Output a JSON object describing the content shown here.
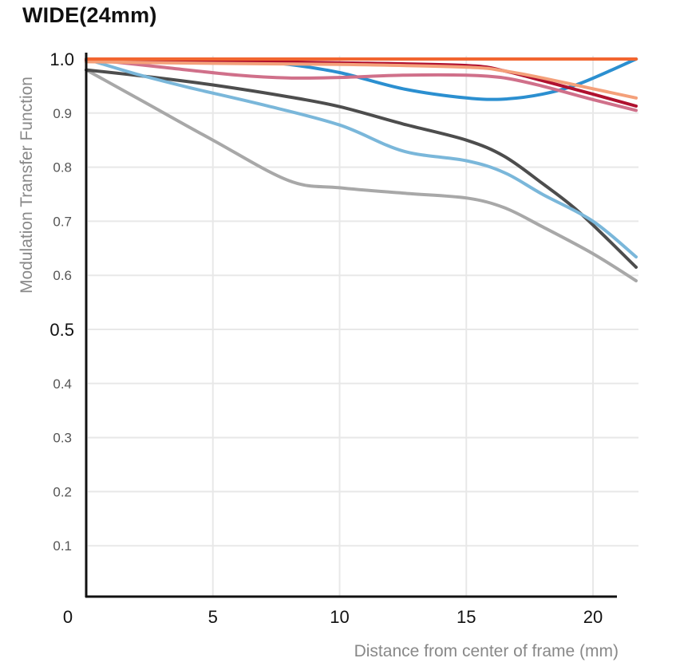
{
  "chart_data": {
    "type": "line",
    "title": "WIDE(24mm)",
    "xlabel": "Distance from center of frame (mm)",
    "ylabel": "Modulation Transfer Function",
    "xlim": [
      0,
      21.7
    ],
    "ylim": [
      0,
      1.0
    ],
    "grid": true,
    "legend": "none",
    "xticks": [
      {
        "value": 0,
        "label": "0"
      },
      {
        "value": 5,
        "label": "5"
      },
      {
        "value": 10,
        "label": "10"
      },
      {
        "value": 15,
        "label": "15"
      },
      {
        "value": 20,
        "label": "20"
      }
    ],
    "yticks": [
      {
        "value": 1.0,
        "label": "1.0",
        "major": true
      },
      {
        "value": 0.9,
        "label": "0.9",
        "major": false
      },
      {
        "value": 0.8,
        "label": "0.8",
        "major": false
      },
      {
        "value": 0.7,
        "label": "0.7",
        "major": false
      },
      {
        "value": 0.6,
        "label": "0.6",
        "major": false
      },
      {
        "value": 0.5,
        "label": "0.5",
        "major": true
      },
      {
        "value": 0.4,
        "label": "0.4",
        "major": false
      },
      {
        "value": 0.3,
        "label": "0.3",
        "major": false
      },
      {
        "value": 0.2,
        "label": "0.2",
        "major": false
      },
      {
        "value": 0.1,
        "label": "0.1",
        "major": false
      }
    ],
    "series": [
      {
        "name": "series-gray",
        "color": "#a8a8a8",
        "x": [
          0,
          2.5,
          5,
          8,
          10,
          12.5,
          15,
          16.5,
          18,
          20,
          21.7
        ],
        "y": [
          0.98,
          0.915,
          0.85,
          0.775,
          0.762,
          0.752,
          0.743,
          0.725,
          0.69,
          0.64,
          0.59
        ]
      },
      {
        "name": "series-dark-gray",
        "color": "#4d4d4d",
        "x": [
          0,
          2.5,
          5,
          8,
          10,
          12.5,
          15,
          16.5,
          18,
          19.5,
          21.7
        ],
        "y": [
          0.98,
          0.967,
          0.952,
          0.93,
          0.912,
          0.88,
          0.85,
          0.82,
          0.77,
          0.715,
          0.615
        ]
      },
      {
        "name": "series-light-blue",
        "color": "#7ab7da",
        "x": [
          0,
          2,
          4,
          7,
          10,
          12.5,
          15,
          16.5,
          18,
          20,
          21.7
        ],
        "y": [
          1.0,
          0.972,
          0.948,
          0.915,
          0.878,
          0.83,
          0.812,
          0.79,
          0.75,
          0.7,
          0.634
        ]
      },
      {
        "name": "series-blue",
        "color": "#2b8fd0",
        "x": [
          0,
          3,
          6,
          8,
          10,
          12.5,
          15,
          16.5,
          18,
          19.5,
          21.7
        ],
        "y": [
          1.0,
          1.0,
          0.999,
          0.99,
          0.975,
          0.945,
          0.928,
          0.926,
          0.935,
          0.955,
          1.0
        ]
      },
      {
        "name": "series-pink",
        "color": "#d0708a",
        "x": [
          0,
          3,
          6,
          8,
          10,
          12.5,
          15,
          16.5,
          18,
          20,
          21.7
        ],
        "y": [
          1.0,
          0.985,
          0.97,
          0.965,
          0.966,
          0.97,
          0.97,
          0.965,
          0.95,
          0.925,
          0.905
        ]
      },
      {
        "name": "series-dark-red",
        "color": "#b0112f",
        "x": [
          0,
          5,
          10,
          15,
          16.5,
          18,
          20,
          21.7
        ],
        "y": [
          0.998,
          0.996,
          0.993,
          0.988,
          0.978,
          0.96,
          0.935,
          0.913
        ]
      },
      {
        "name": "series-salmon",
        "color": "#f4a07a",
        "x": [
          0,
          5,
          10,
          15,
          16.5,
          18,
          20,
          21.7
        ],
        "y": [
          0.995,
          0.992,
          0.99,
          0.985,
          0.978,
          0.965,
          0.945,
          0.928
        ]
      },
      {
        "name": "series-orange",
        "color": "#f26530",
        "x": [
          0,
          5,
          10,
          15,
          20,
          21.7
        ],
        "y": [
          1.0,
          1.0,
          1.0,
          1.0,
          1.0,
          1.0
        ]
      }
    ]
  }
}
